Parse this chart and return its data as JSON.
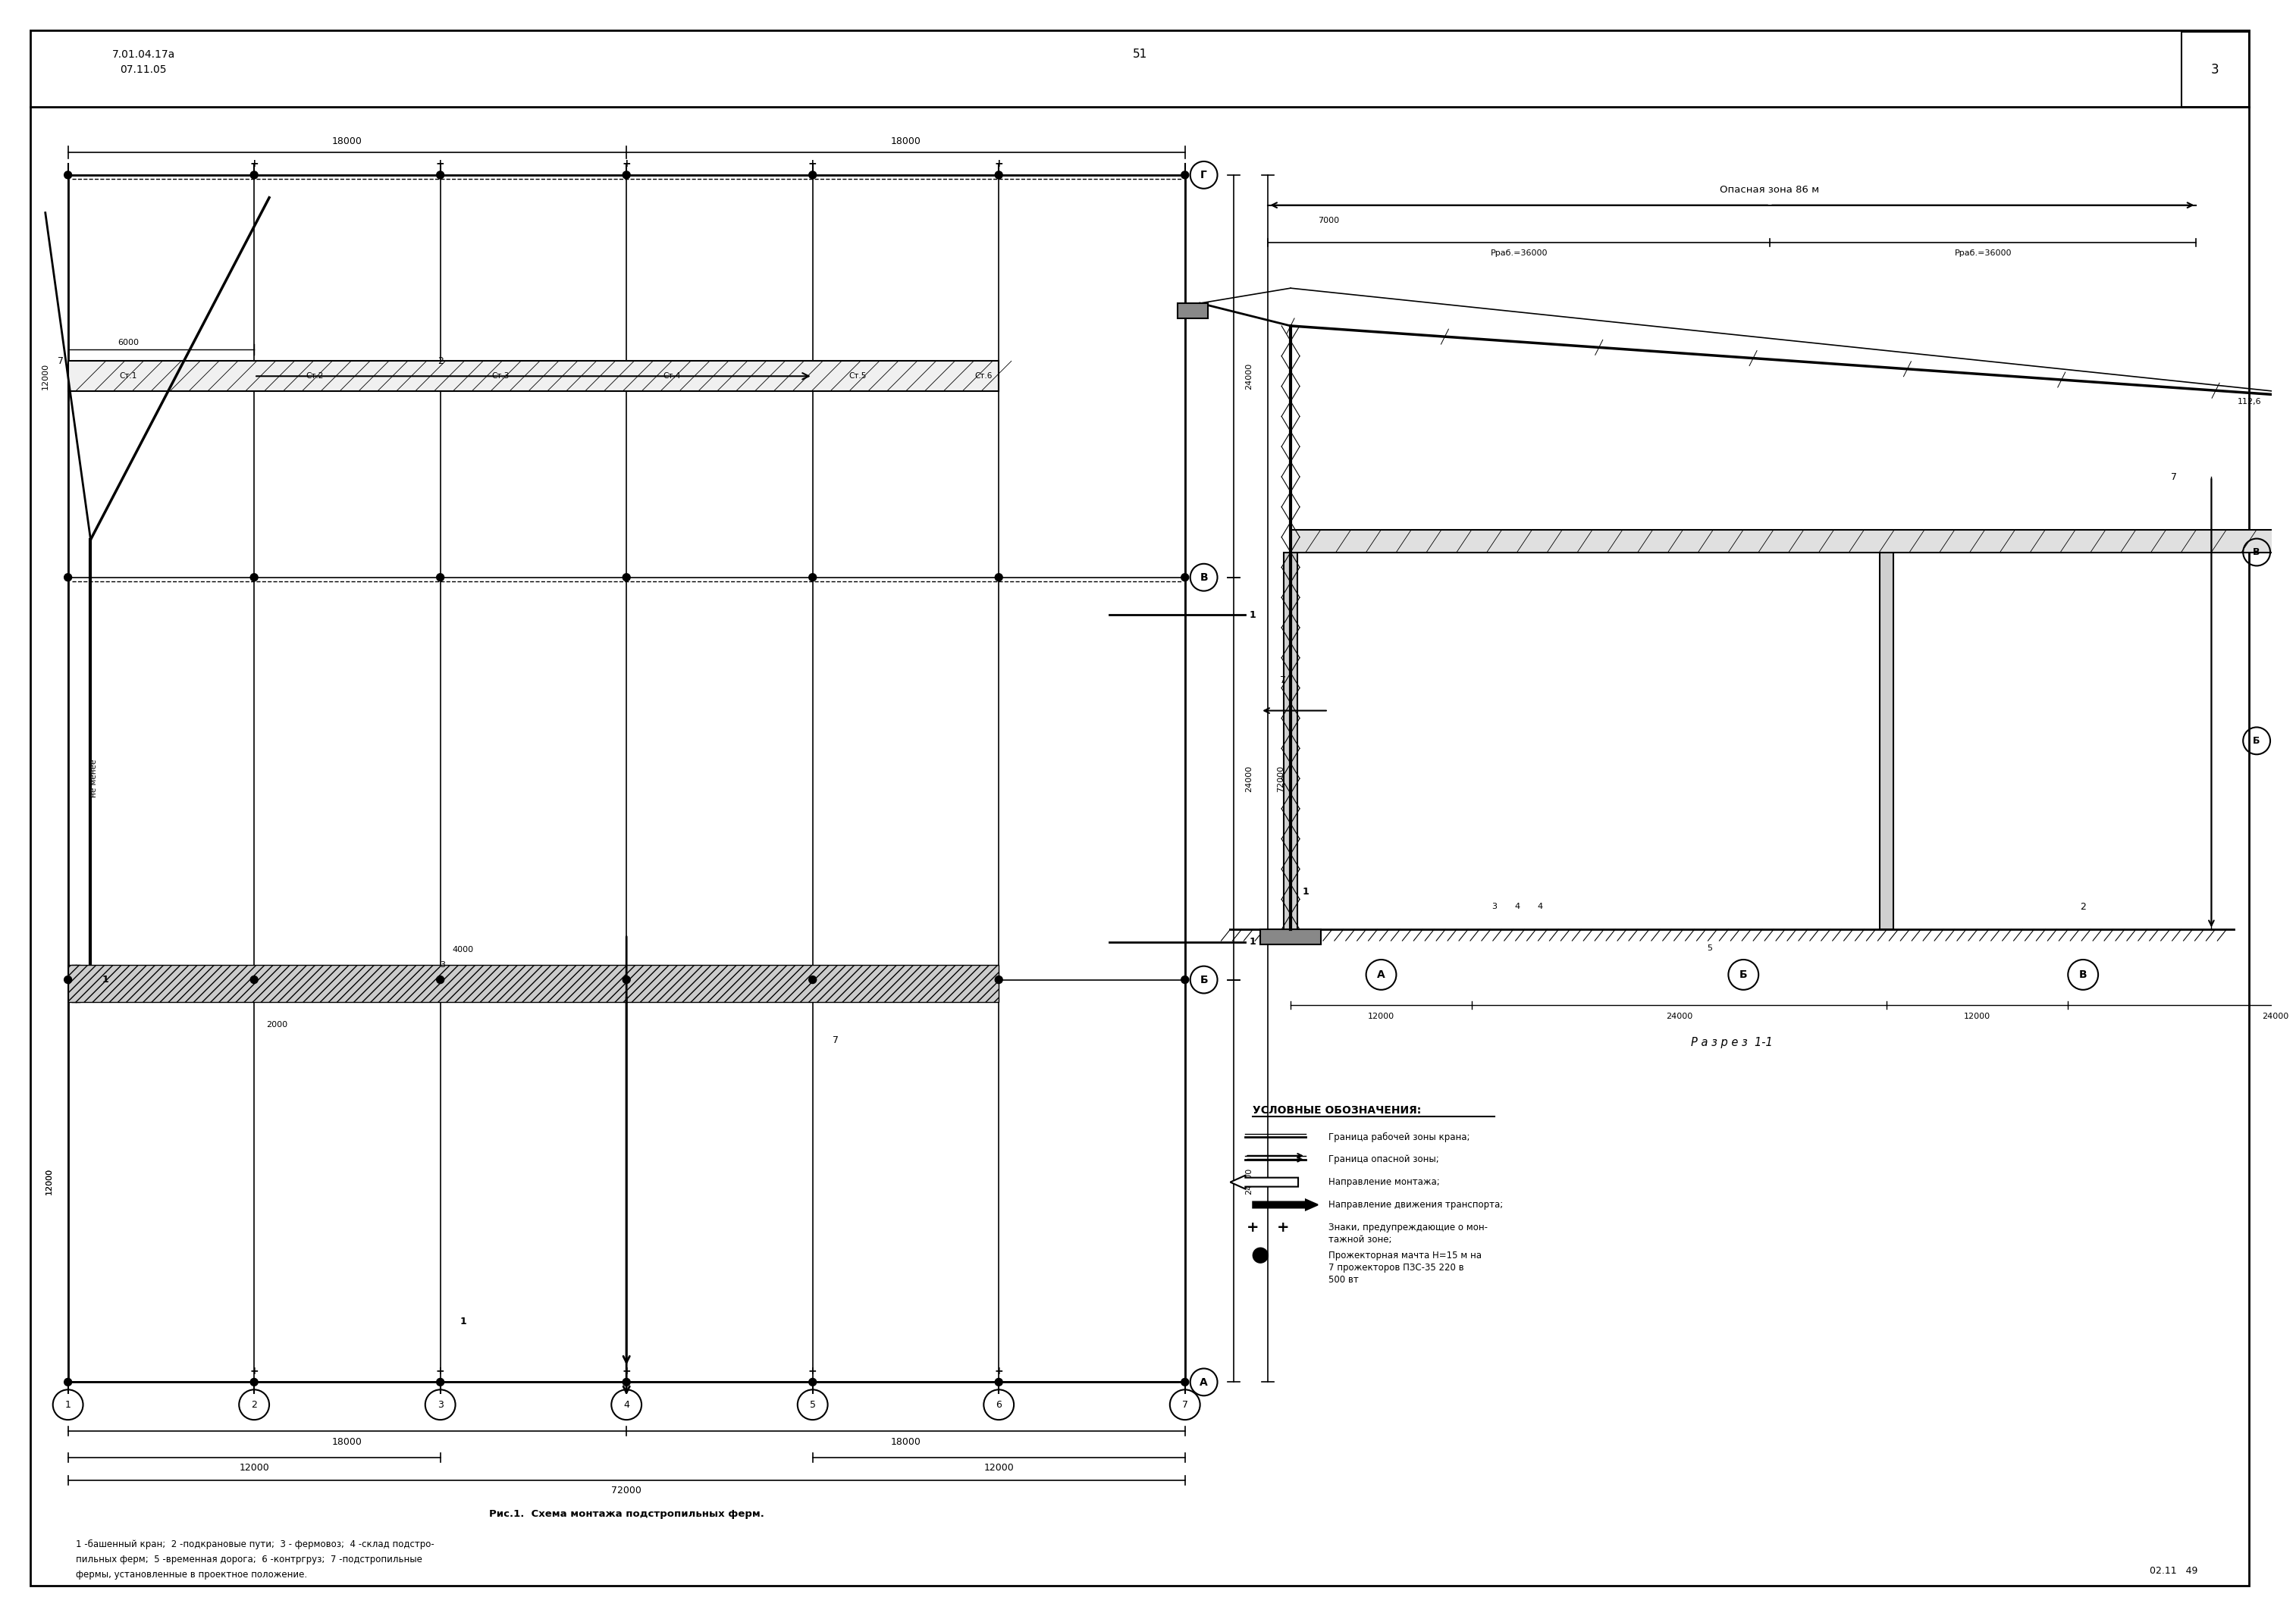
{
  "page_bg": "#ffffff",
  "border_color": "#000000",
  "line_color": "#000000",
  "title_top_left": "7.01.04.17a\n07.11.05",
  "title_center": "51",
  "title_top_right": "3",
  "fig1_title": "Рис.1.  Схема монтажа подстропильных ферм.",
  "fig1_caption": "1 -башенный кран;  2 -подкрановые пути;  3 - фермовоз;  4 -склад подстро-\nпильных ферм;  5 -временная дорога;  6 -контргруз;  7 -подстропильные\nфермы, установленные в проектное положение.",
  "section_title": "Р а з р е з  1-1",
  "legend_title": "УСЛОВНЫЕ ОБОЗНАЧЕНИЯ:",
  "legend_items": [
    "Граница рабочей зоны крана;",
    "Граница опасной зоны;",
    "Направление монтажа;",
    "Направление движения транспорта;",
    "Знаки, предупреждающие о мон-\nтажной зоне;",
    "Прожекторная мачта Н=15 м на\n7 прожекторов ПЗС-35 220 в\n500 вт"
  ],
  "bottom_right": "02.11   49",
  "opas_zona": "Опасная зона 86 м",
  "rrab1": "Рраб.=36000",
  "rrab2": "Рраб.=36000",
  "dim_7000": "7000",
  "cross_labels_bottom": [
    "А",
    "Б",
    "В"
  ],
  "cross_labels_right": [
    "Г",
    "В",
    "Б",
    "А"
  ],
  "col_labels": [
    "1",
    "2",
    "3",
    "4",
    "5",
    "6",
    "7"
  ],
  "dim_18000_top": "18000",
  "dim_18000_top2": "18000",
  "dim_18000_bot": "18000",
  "dim_18000_bot2": "18000",
  "dim_12000_bot": "12000",
  "dim_12000_bot2": "12000",
  "dim_72000": "72000",
  "dim_24000_r1": "24000",
  "dim_24000_r2": "24000",
  "dim_24000_r3": "24000",
  "dim_24000_r4": "24000",
  "dim_24000_tot": "72000",
  "dim_6000": "6000",
  "dim_12000v": "12000",
  "dim_4000": "4000",
  "dim_2000": "2000",
  "dim_12000h": "12000",
  "st_labels": [
    "Ст.1",
    "Ст.2",
    "Ст.3",
    "Ст.4",
    "Ст.5",
    "Ст.6"
  ],
  "sect_12000_1": "12000",
  "sect_12000_2": "12000",
  "sect_24000": "24000",
  "dim_112": "112,6"
}
